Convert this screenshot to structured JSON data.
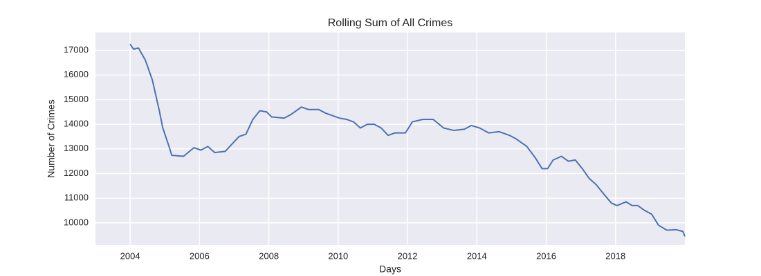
{
  "chart_data": {
    "type": "line",
    "title": "Rolling Sum of All Crimes",
    "x_label": "Days",
    "y_label": "Number of Crimes",
    "x": [
      2004.0,
      2004.1,
      2004.24,
      2004.44,
      2004.64,
      2004.84,
      2004.94,
      2005.04,
      2005.14,
      2005.2,
      2005.54,
      2005.84,
      2006.04,
      2006.24,
      2006.44,
      2006.74,
      2006.94,
      2007.14,
      2007.34,
      2007.54,
      2007.74,
      2007.94,
      2008.08,
      2008.44,
      2008.64,
      2008.94,
      2009.14,
      2009.44,
      2009.64,
      2010.04,
      2010.24,
      2010.44,
      2010.64,
      2010.84,
      2011.04,
      2011.24,
      2011.44,
      2011.64,
      2011.94,
      2012.14,
      2012.44,
      2012.74,
      2013.04,
      2013.34,
      2013.64,
      2013.84,
      2014.08,
      2014.34,
      2014.64,
      2014.94,
      2015.14,
      2015.44,
      2015.68,
      2015.88,
      2016.04,
      2016.2,
      2016.44,
      2016.64,
      2016.84,
      2017.04,
      2017.24,
      2017.44,
      2017.64,
      2017.88,
      2018.04,
      2018.3,
      2018.48,
      2018.64,
      2018.84,
      2019.04,
      2019.24,
      2019.48,
      2019.74,
      2019.94,
      2020.0
    ],
    "series": [
      {
        "name": "Rolling Sum",
        "color": "#4c72b0",
        "values": [
          17250,
          17050,
          17100,
          16600,
          15800,
          14560,
          13860,
          13440,
          13020,
          12740,
          12700,
          13050,
          12950,
          13100,
          12850,
          12900,
          13200,
          13500,
          13600,
          14200,
          14550,
          14500,
          14300,
          14250,
          14400,
          14700,
          14600,
          14600,
          14450,
          14250,
          14200,
          14100,
          13850,
          14000,
          14000,
          13850,
          13550,
          13650,
          13650,
          14100,
          14200,
          14200,
          13850,
          13750,
          13800,
          13950,
          13850,
          13650,
          13700,
          13550,
          13400,
          13100,
          12650,
          12200,
          12200,
          12550,
          12700,
          12500,
          12550,
          12200,
          11800,
          11550,
          11200,
          10800,
          10700,
          10850,
          10700,
          10700,
          10500,
          10350,
          9900,
          9700,
          9720,
          9650,
          9450
        ]
      }
    ],
    "xlim": [
      2003.0,
      2020.0
    ],
    "xticks": [
      2004,
      2006,
      2008,
      2010,
      2012,
      2014,
      2016,
      2018
    ],
    "ylim": [
      9100,
      17730
    ],
    "yticks": [
      10000,
      11000,
      12000,
      13000,
      14000,
      15000,
      16000,
      17000
    ],
    "grid": true
  }
}
